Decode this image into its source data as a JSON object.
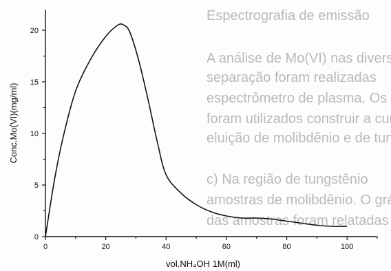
{
  "background_text": [
    "Espectrografia de emissão",
    "A análise de Mo(VI) nas diversas fases",
    "separação foram realizadas",
    "espectrômetro de plasma. Os valores",
    "foram utilizados construir a curva de",
    "eluição de molibdênio e de tungstênio.",
    "c) Na região de tungstênio",
    "amostras de molibdênio. O gráfico de eluição",
    "das amostras foram relatadas"
  ],
  "chart_data": {
    "type": "line",
    "title": "",
    "xlabel": "vol.NH₄OH 1M(ml)",
    "ylabel": "Conc.Mo(VI)(mg/ml)",
    "xlim": [
      0,
      110
    ],
    "ylim": [
      0,
      22
    ],
    "xticks": [
      0,
      20,
      40,
      60,
      80,
      100
    ],
    "yticks": [
      0,
      5,
      10,
      15,
      20
    ],
    "grid": false,
    "legend": "none",
    "series": [
      {
        "x": [
          0,
          3,
          6,
          10,
          15,
          20,
          24,
          26,
          28,
          31,
          34,
          37,
          40,
          45,
          50,
          55,
          60,
          65,
          70,
          75,
          80,
          85,
          90,
          95,
          100
        ],
        "y": [
          0,
          5.5,
          9.8,
          14.1,
          17.2,
          19.4,
          20.5,
          20.5,
          19.8,
          17.0,
          13.3,
          9.3,
          6.0,
          4.2,
          3.1,
          2.4,
          2.0,
          1.8,
          1.8,
          1.7,
          1.5,
          1.3,
          1.1,
          1.0,
          1.0
        ]
      }
    ]
  }
}
